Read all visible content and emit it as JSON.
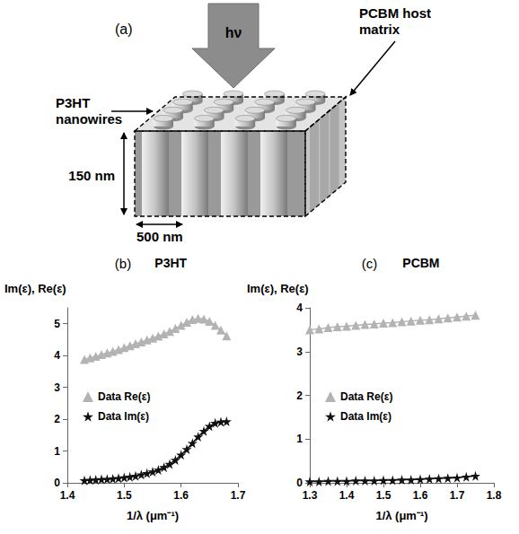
{
  "diagram": {
    "label": "(a)",
    "light": "hν",
    "nanowires": "P3HT nanowires",
    "matrix": "PCBM host matrix",
    "height": "150 nm",
    "width": "500 nm"
  },
  "chart_data": [
    {
      "type": "scatter",
      "title": "P3HT",
      "annotations": [
        "(b)"
      ],
      "x_label": "1/λ (μm⁻¹)",
      "y_label": "Im(ε), Re(ε)",
      "x": [
        1.43,
        1.44,
        1.45,
        1.46,
        1.47,
        1.48,
        1.49,
        1.5,
        1.51,
        1.52,
        1.53,
        1.54,
        1.55,
        1.56,
        1.57,
        1.58,
        1.59,
        1.6,
        1.61,
        1.62,
        1.63,
        1.64,
        1.65,
        1.66,
        1.67,
        1.68
      ],
      "series": [
        {
          "name": "Data Re(ε)",
          "color": "#b3b3b3",
          "marker": "triangle",
          "line_style": "solid",
          "values": [
            3.88,
            3.93,
            3.98,
            4.03,
            4.08,
            4.13,
            4.19,
            4.25,
            4.31,
            4.37,
            4.43,
            4.49,
            4.55,
            4.61,
            4.68,
            4.76,
            4.85,
            4.95,
            5.05,
            5.13,
            5.17,
            5.15,
            5.08,
            4.95,
            4.8,
            4.62
          ]
        },
        {
          "name": "Data Im(ε)",
          "color": "#111111",
          "marker": "star",
          "line_style": "solid",
          "values": [
            0.08,
            0.09,
            0.1,
            0.11,
            0.12,
            0.13,
            0.15,
            0.17,
            0.19,
            0.22,
            0.26,
            0.3,
            0.35,
            0.41,
            0.49,
            0.59,
            0.72,
            0.88,
            1.06,
            1.25,
            1.45,
            1.63,
            1.78,
            1.88,
            1.92,
            1.93
          ]
        }
      ],
      "xlim": [
        1.4,
        1.7
      ],
      "xticks": [
        1.4,
        1.5,
        1.6,
        1.7
      ],
      "ylim": [
        0,
        5.5
      ],
      "yticks": [
        0,
        1,
        2,
        3,
        4,
        5
      ],
      "grid": false,
      "legend": "left"
    },
    {
      "type": "scatter",
      "title": "PCBM",
      "annotations": [
        "(c)"
      ],
      "x_label": "1/λ (μm⁻¹)",
      "y_label": "Im(ε), Re(ε)",
      "x": [
        1.3,
        1.325,
        1.35,
        1.375,
        1.4,
        1.425,
        1.45,
        1.475,
        1.5,
        1.525,
        1.55,
        1.575,
        1.6,
        1.625,
        1.65,
        1.675,
        1.7,
        1.725,
        1.75
      ],
      "series": [
        {
          "name": "Data Re(ε)",
          "color": "#b3b3b3",
          "marker": "triangle",
          "line_style": "solid",
          "values": [
            3.5,
            3.52,
            3.55,
            3.57,
            3.58,
            3.6,
            3.62,
            3.63,
            3.65,
            3.66,
            3.68,
            3.7,
            3.72,
            3.73,
            3.75,
            3.77,
            3.79,
            3.81,
            3.83
          ]
        },
        {
          "name": "Data Im(ε)",
          "color": "#111111",
          "marker": "star",
          "line_style": "solid",
          "values": [
            0.03,
            0.03,
            0.04,
            0.04,
            0.04,
            0.05,
            0.05,
            0.05,
            0.06,
            0.06,
            0.07,
            0.07,
            0.08,
            0.09,
            0.1,
            0.11,
            0.12,
            0.14,
            0.16
          ]
        }
      ],
      "xlim": [
        1.3,
        1.8
      ],
      "xticks": [
        1.3,
        1.4,
        1.5,
        1.6,
        1.7,
        1.8
      ],
      "ylim": [
        0,
        4
      ],
      "yticks": [
        0,
        1,
        2,
        3,
        4
      ],
      "grid": false,
      "legend": "left"
    }
  ]
}
